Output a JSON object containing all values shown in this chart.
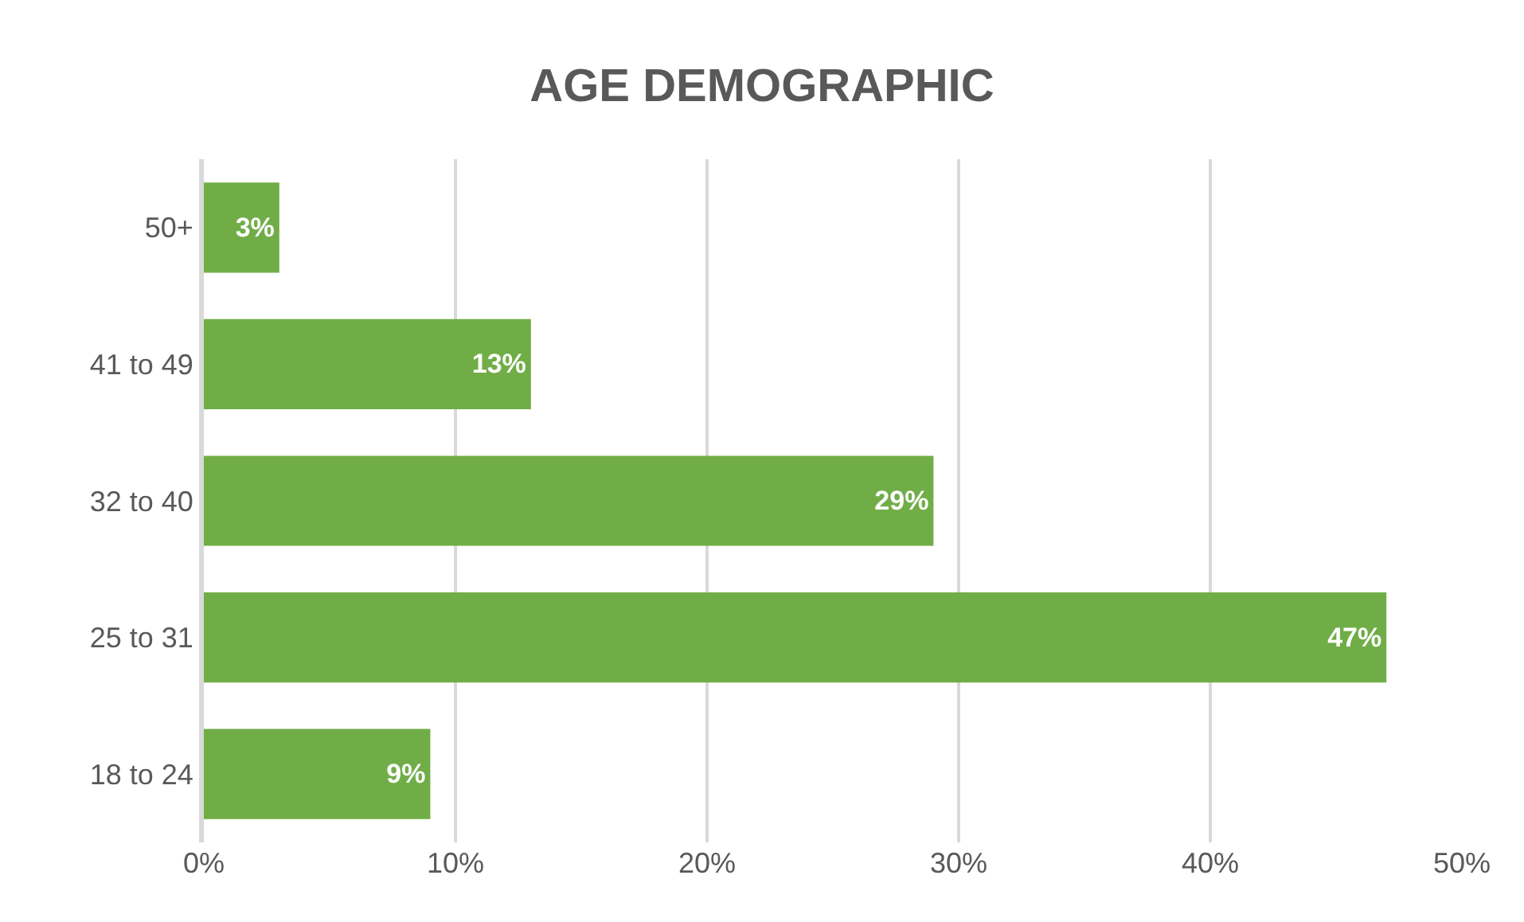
{
  "chart_data": {
    "type": "bar",
    "orientation": "horizontal",
    "title": "AGE DEMOGRAPHIC",
    "categories": [
      "50+",
      "41 to 49",
      "32 to 40",
      "25 to 31",
      "18 to 24"
    ],
    "values": [
      3,
      13,
      29,
      47,
      9
    ],
    "value_labels": [
      "3%",
      "13%",
      "29%",
      "47%",
      "9%"
    ],
    "color": "#70ad47",
    "xlim": [
      0,
      50
    ],
    "xticks": [
      {
        "value": 0,
        "label": "0%"
      },
      {
        "value": 10,
        "label": "10%"
      },
      {
        "value": 20,
        "label": "20%"
      },
      {
        "value": 30,
        "label": "30%"
      },
      {
        "value": 40,
        "label": "40%"
      },
      {
        "value": 50,
        "label": "50%"
      }
    ],
    "grid": "x"
  }
}
